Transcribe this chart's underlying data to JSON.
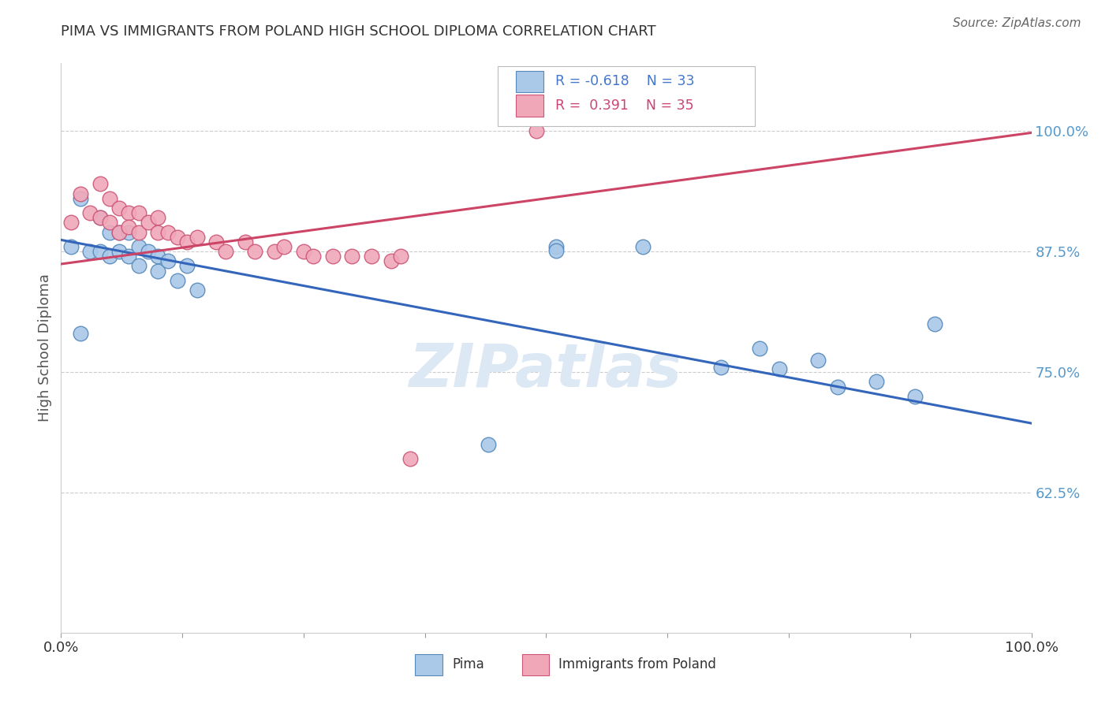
{
  "title": "PIMA VS IMMIGRANTS FROM POLAND HIGH SCHOOL DIPLOMA CORRELATION CHART",
  "source": "Source: ZipAtlas.com",
  "ylabel": "High School Diploma",
  "ylabel_right_labels": [
    "100.0%",
    "87.5%",
    "75.0%",
    "62.5%"
  ],
  "ylabel_right_values": [
    1.0,
    0.875,
    0.75,
    0.625
  ],
  "xlim": [
    0.0,
    1.0
  ],
  "ylim": [
    0.48,
    1.07
  ],
  "pima_x": [
    0.01,
    0.02,
    0.03,
    0.04,
    0.04,
    0.05,
    0.05,
    0.06,
    0.06,
    0.07,
    0.07,
    0.08,
    0.08,
    0.09,
    0.1,
    0.1,
    0.11,
    0.12,
    0.13,
    0.14,
    0.02,
    0.51,
    0.51,
    0.6,
    0.68,
    0.72,
    0.74,
    0.78,
    0.8,
    0.84,
    0.88,
    0.9,
    0.44
  ],
  "pima_y": [
    0.88,
    0.93,
    0.875,
    0.875,
    0.91,
    0.895,
    0.87,
    0.895,
    0.875,
    0.895,
    0.87,
    0.88,
    0.86,
    0.875,
    0.87,
    0.855,
    0.865,
    0.845,
    0.86,
    0.835,
    0.79,
    0.88,
    0.876,
    0.88,
    0.755,
    0.775,
    0.753,
    0.762,
    0.735,
    0.74,
    0.725,
    0.8,
    0.675
  ],
  "poland_x": [
    0.01,
    0.02,
    0.03,
    0.04,
    0.04,
    0.05,
    0.05,
    0.06,
    0.06,
    0.07,
    0.07,
    0.08,
    0.08,
    0.09,
    0.1,
    0.1,
    0.11,
    0.12,
    0.13,
    0.14,
    0.16,
    0.17,
    0.19,
    0.2,
    0.22,
    0.23,
    0.25,
    0.26,
    0.28,
    0.3,
    0.32,
    0.34,
    0.35,
    0.36,
    0.49
  ],
  "poland_y": [
    0.905,
    0.935,
    0.915,
    0.91,
    0.945,
    0.93,
    0.905,
    0.92,
    0.895,
    0.915,
    0.9,
    0.915,
    0.895,
    0.905,
    0.91,
    0.895,
    0.895,
    0.89,
    0.885,
    0.89,
    0.885,
    0.875,
    0.885,
    0.875,
    0.875,
    0.88,
    0.875,
    0.87,
    0.87,
    0.87,
    0.87,
    0.865,
    0.87,
    0.66,
    1.0
  ],
  "blue_line_y_start": 0.887,
  "blue_line_y_end": 0.697,
  "pink_line_y_start": 0.862,
  "pink_line_y_end": 0.998,
  "background_color": "#ffffff",
  "pima_color": "#aac8e8",
  "poland_color": "#f0a8b8",
  "pima_edge": "#5588bb",
  "poland_edge": "#cc5577",
  "blue_line_color": "#3366bb",
  "pink_line_color": "#cc4466",
  "watermark_color": "#dde8f5",
  "grid_color": "#cccccc",
  "right_label_color": "#5599cc",
  "title_color": "#333333"
}
